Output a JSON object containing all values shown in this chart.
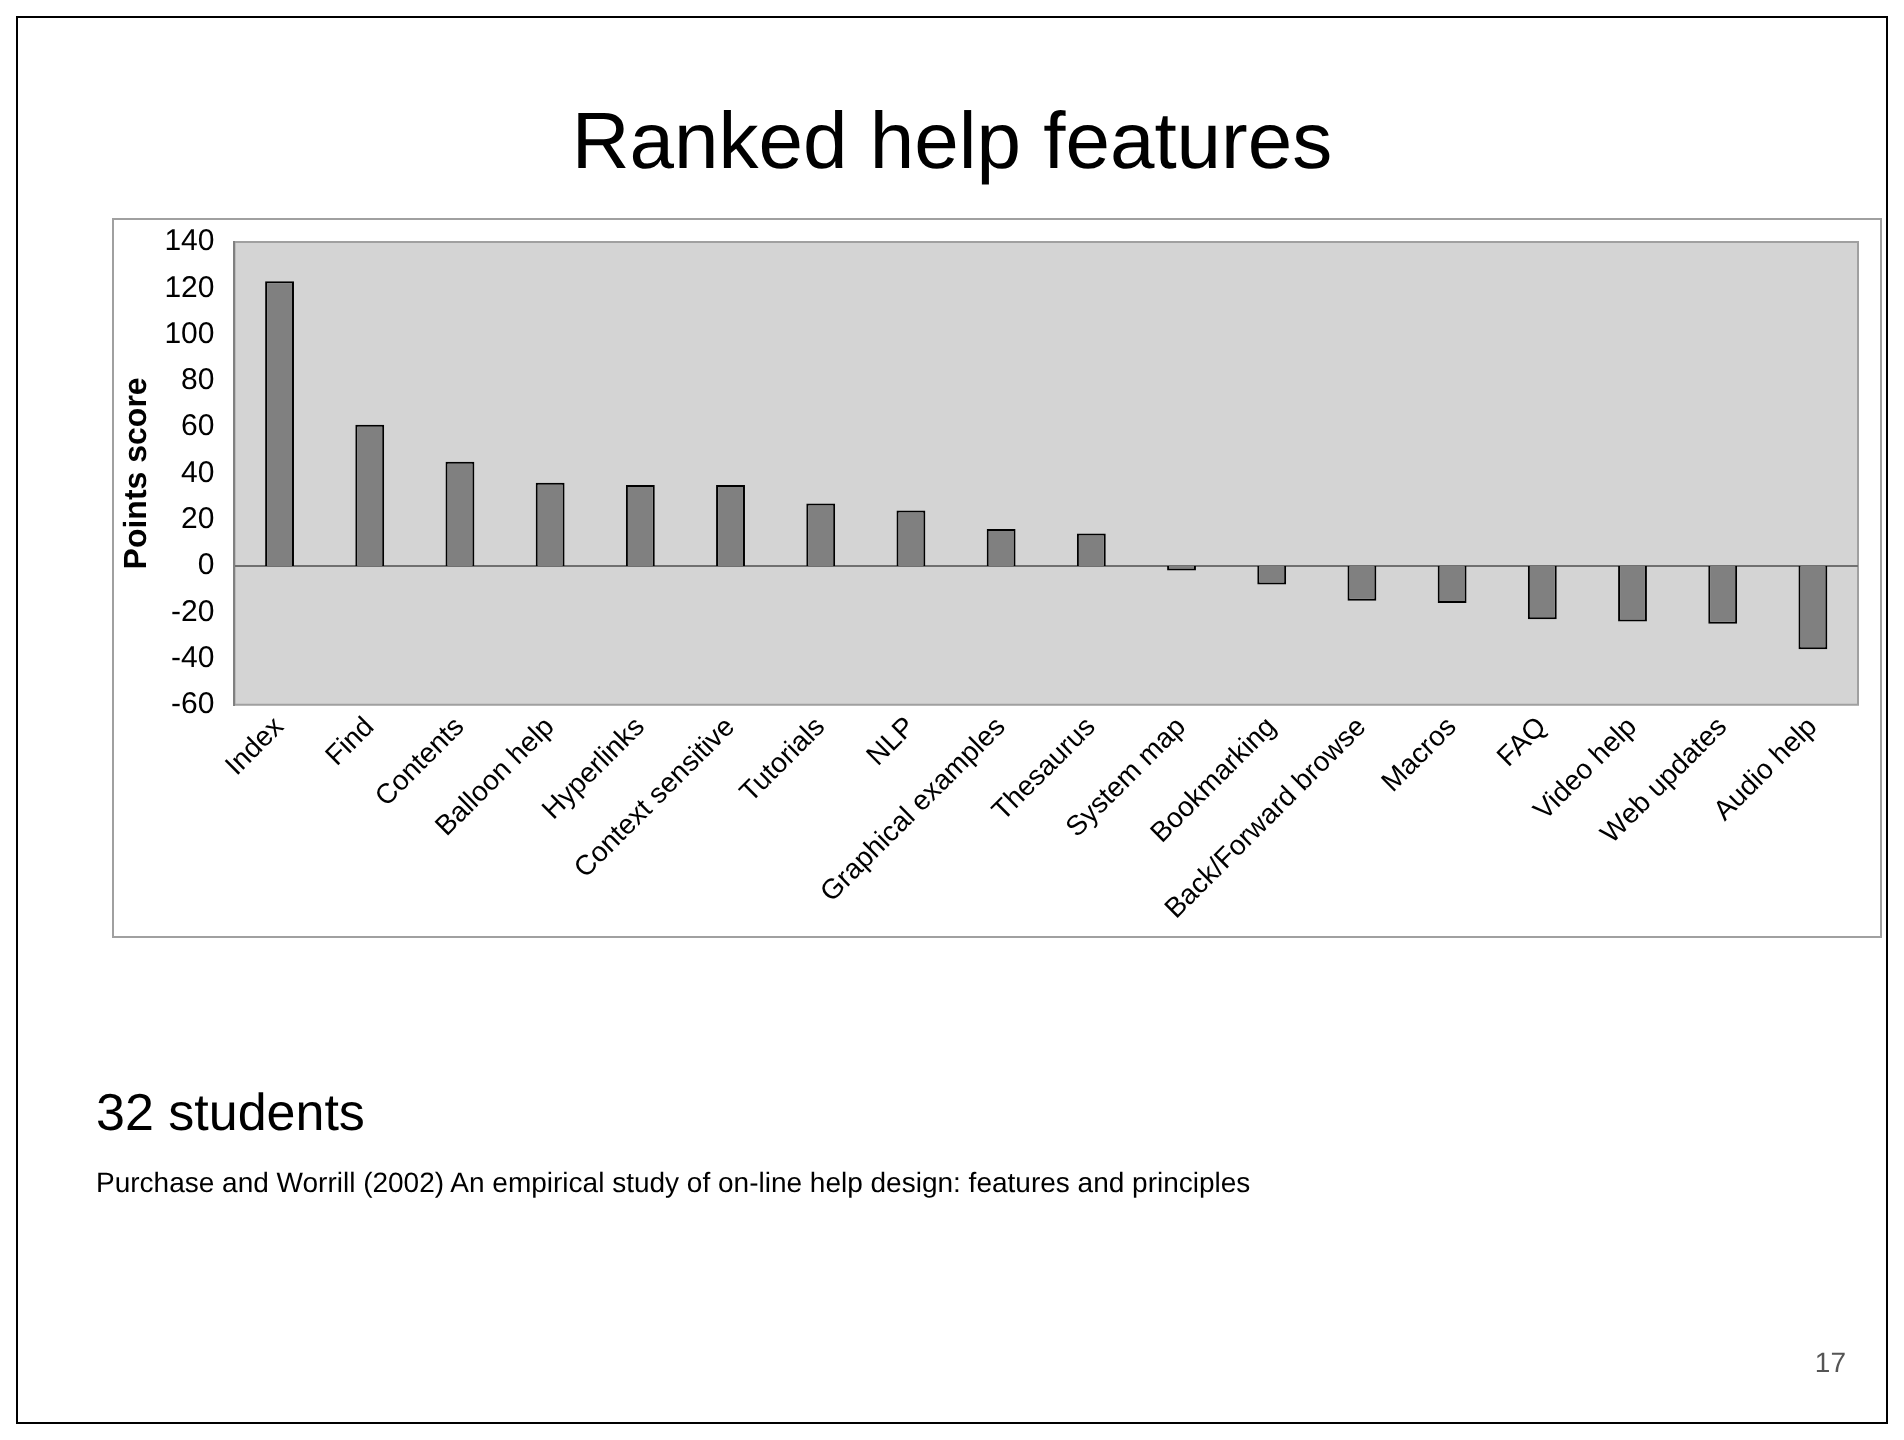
{
  "chart_data": {
    "type": "bar",
    "title": "Ranked help features",
    "ylabel": "Points score",
    "categories": [
      "Index",
      "Find",
      "Contents",
      "Balloon help",
      "Hyperlinks",
      "Context sensitive",
      "Tutorials",
      "NLP",
      "Graphical examples",
      "Thesaurus",
      "System map",
      "Bookmarking",
      "Back/Forward browse",
      "Macros",
      "FAQ",
      "Video help",
      "Web updates",
      "Audio help"
    ],
    "values": [
      123,
      61,
      45,
      36,
      35,
      35,
      27,
      24,
      16,
      14,
      -2,
      -8,
      -15,
      -16,
      -23,
      -24,
      -25,
      -36
    ],
    "color": "#808080",
    "ylim": [
      -60,
      140
    ],
    "yticks": [
      -60,
      -40,
      -20,
      0,
      20,
      40,
      60,
      80,
      100,
      120,
      140
    ],
    "grid": false,
    "legend": false,
    "ref_lines": [
      {
        "axis": "y",
        "value": 0,
        "color": "#707070"
      }
    ],
    "annotations": [
      "32 students",
      "Purchase and Worrill (2002) An empirical study of on-line help design: features and principles",
      "17"
    ]
  }
}
